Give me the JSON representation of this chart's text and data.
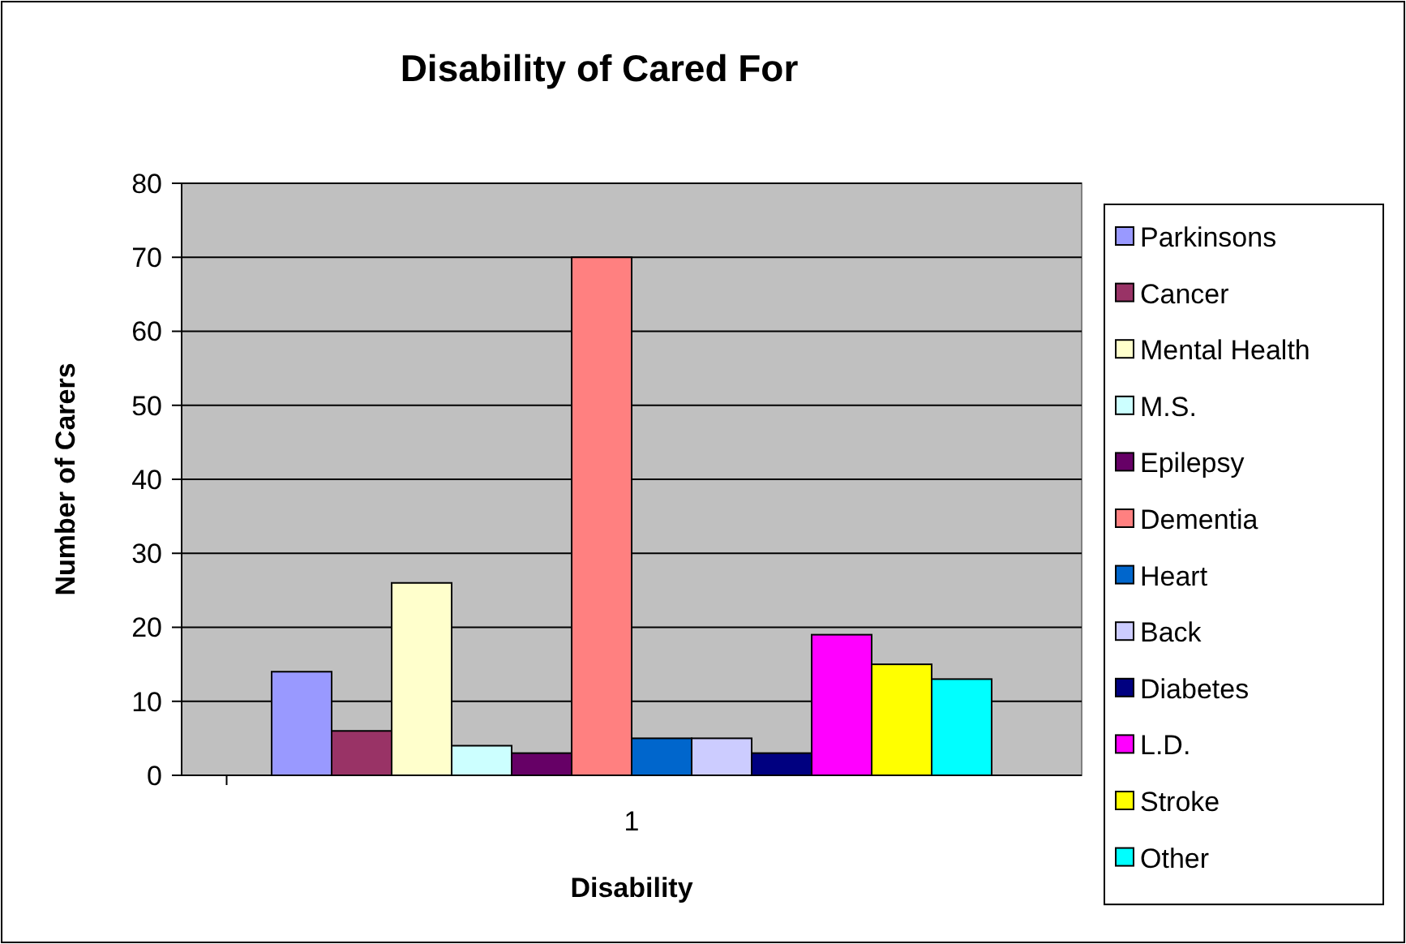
{
  "chart_data": {
    "type": "bar",
    "title": "Disability of Cared For",
    "xlabel": "Disability",
    "ylabel": "Number of Carers",
    "categories": [
      "1"
    ],
    "series": [
      {
        "name": "Parkinsons",
        "color": "#9999ff",
        "values": [
          14
        ]
      },
      {
        "name": "Cancer",
        "color": "#993366",
        "values": [
          6
        ]
      },
      {
        "name": "Mental Health",
        "color": "#ffffcc",
        "values": [
          26
        ]
      },
      {
        "name": "M.S.",
        "color": "#ccffff",
        "values": [
          4
        ]
      },
      {
        "name": "Epilepsy",
        "color": "#660066",
        "values": [
          3
        ]
      },
      {
        "name": "Dementia",
        "color": "#ff8080",
        "values": [
          70
        ]
      },
      {
        "name": "Heart",
        "color": "#0066cc",
        "values": [
          5
        ]
      },
      {
        "name": "Back",
        "color": "#ccccff",
        "values": [
          5
        ]
      },
      {
        "name": "Diabetes",
        "color": "#000080",
        "values": [
          3
        ]
      },
      {
        "name": "L.D.",
        "color": "#ff00ff",
        "values": [
          19
        ]
      },
      {
        "name": "Stroke",
        "color": "#ffff00",
        "values": [
          15
        ]
      },
      {
        "name": "Other",
        "color": "#00ffff",
        "values": [
          13
        ]
      }
    ],
    "ylim": [
      0,
      80
    ],
    "yticks": [
      0,
      10,
      20,
      30,
      40,
      50,
      60,
      70,
      80
    ],
    "grid": "y",
    "legend": "right"
  }
}
